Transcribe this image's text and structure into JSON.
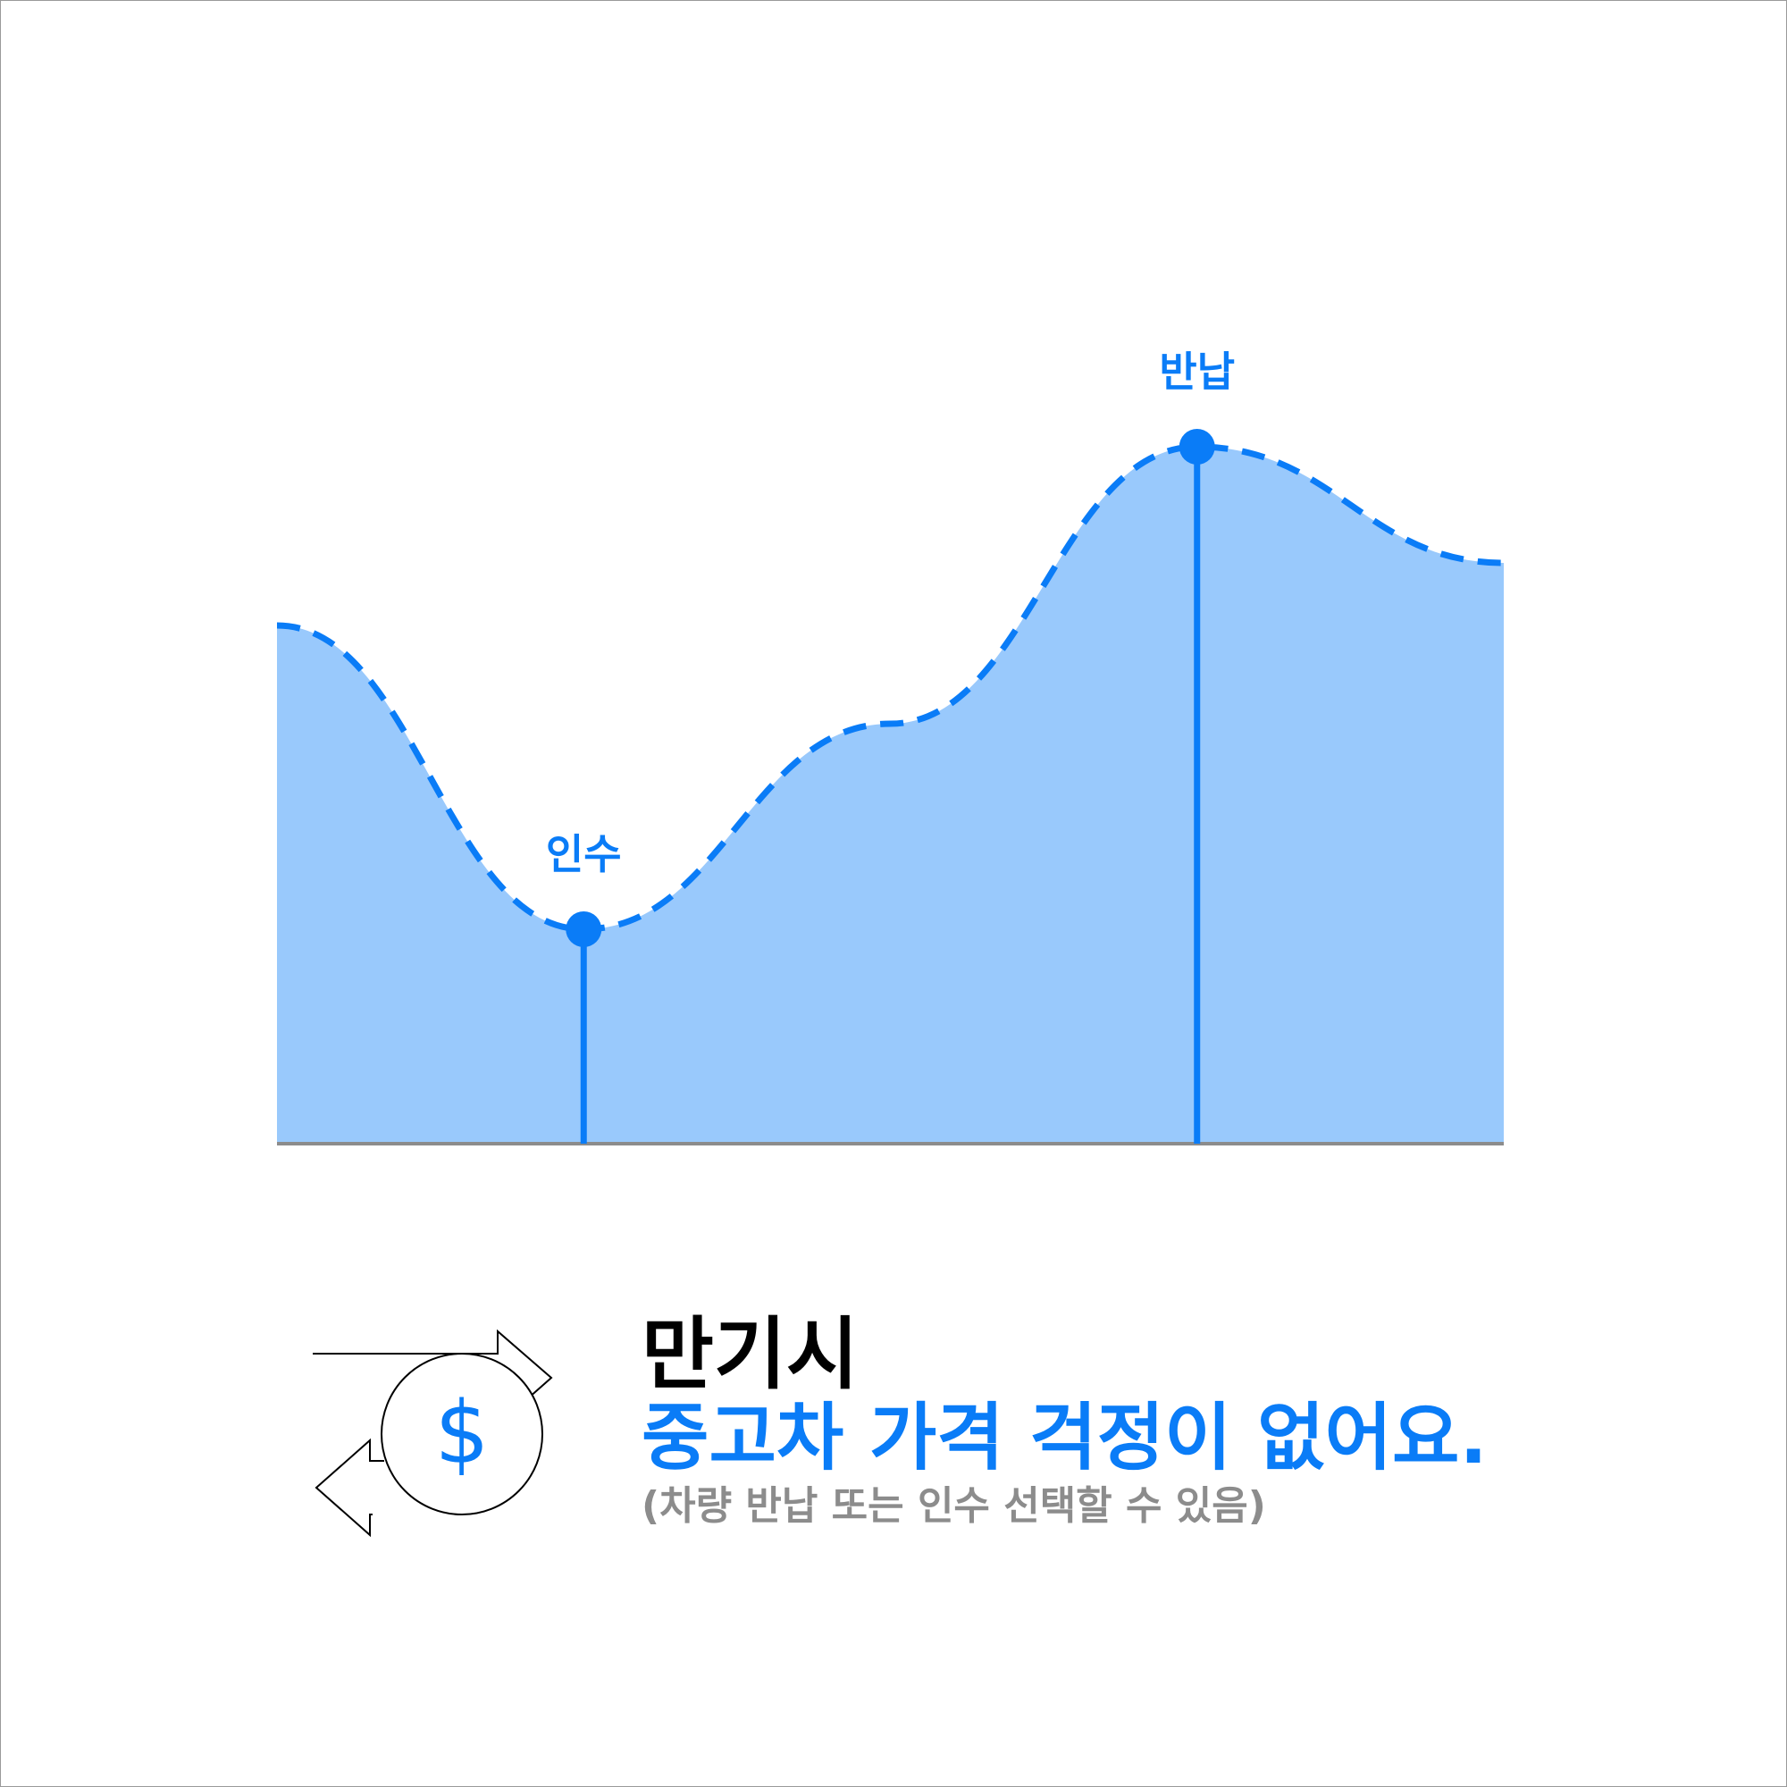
{
  "colors": {
    "accent": "#0a7cf7",
    "area_fill": "#99c9fc",
    "baseline": "#8c8c8c",
    "headline": "#000000",
    "note": "#8c8c8c"
  },
  "chart_data": {
    "type": "area",
    "curve": "smooth",
    "line_style": "dashed",
    "grid": false,
    "x": [
      0,
      1,
      2,
      3,
      4
    ],
    "values": [
      0.58,
      0.24,
      0.47,
      0.78,
      0.65
    ],
    "xlim": [
      0,
      4
    ],
    "ylim": [
      0,
      1
    ],
    "points": [
      {
        "label": "인수",
        "x": 1,
        "value": 0.24
      },
      {
        "label": "반납",
        "x": 3,
        "value": 0.78
      }
    ]
  },
  "headline": {
    "title": "만기시",
    "subtitle": "중고차 가격 걱정이 없어요.",
    "note": "(차량 반납 또는 인수 선택할 수 있음)"
  },
  "icon": {
    "name": "money-exchange-icon",
    "glyph": "$"
  }
}
